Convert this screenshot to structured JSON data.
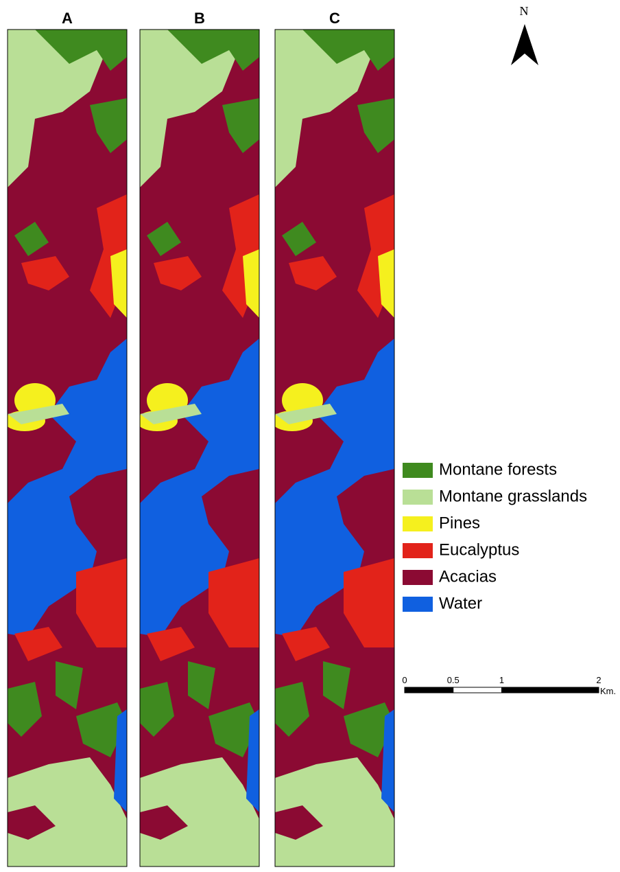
{
  "panels": [
    {
      "label": "A"
    },
    {
      "label": "B"
    },
    {
      "label": "C"
    }
  ],
  "north_arrow": {
    "label": "N"
  },
  "legend": [
    {
      "name": "Montane forests",
      "color": "#3f8a1f"
    },
    {
      "name": "Montane grasslands",
      "color": "#b9df96"
    },
    {
      "name": "Pines",
      "color": "#f5f01e"
    },
    {
      "name": "Eucalyptus",
      "color": "#e2231a"
    },
    {
      "name": "Acacias",
      "color": "#8b0a33"
    },
    {
      "name": "Water",
      "color": "#1060e0"
    }
  ],
  "scale_bar": {
    "ticks": [
      0,
      0.5,
      1,
      2
    ],
    "unit": "Km."
  }
}
